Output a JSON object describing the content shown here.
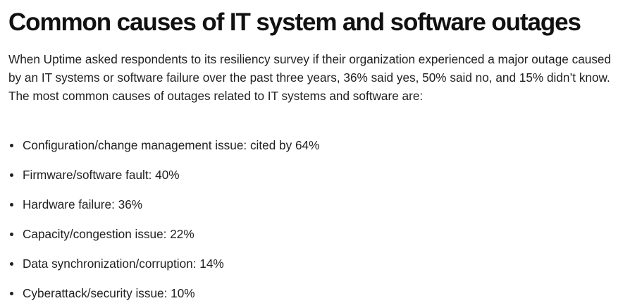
{
  "article": {
    "title": "Common causes of IT system and software outages",
    "intro": "When Uptime asked respondents to its resiliency survey if their organization experienced a major outage caused by an IT systems or software failure over the past three years, 36% said yes, 50% said no, and 15% didn’t know. The most common causes of outages related to IT systems and software are:",
    "causes": [
      "Configuration/change management issue: cited by 64%",
      "Firmware/software fault: 40%",
      "Hardware failure: 36%",
      "Capacity/congestion issue: 22%",
      "Data synchronization/corruption: 14%",
      "Cyberattack/security issue: 10%"
    ]
  }
}
